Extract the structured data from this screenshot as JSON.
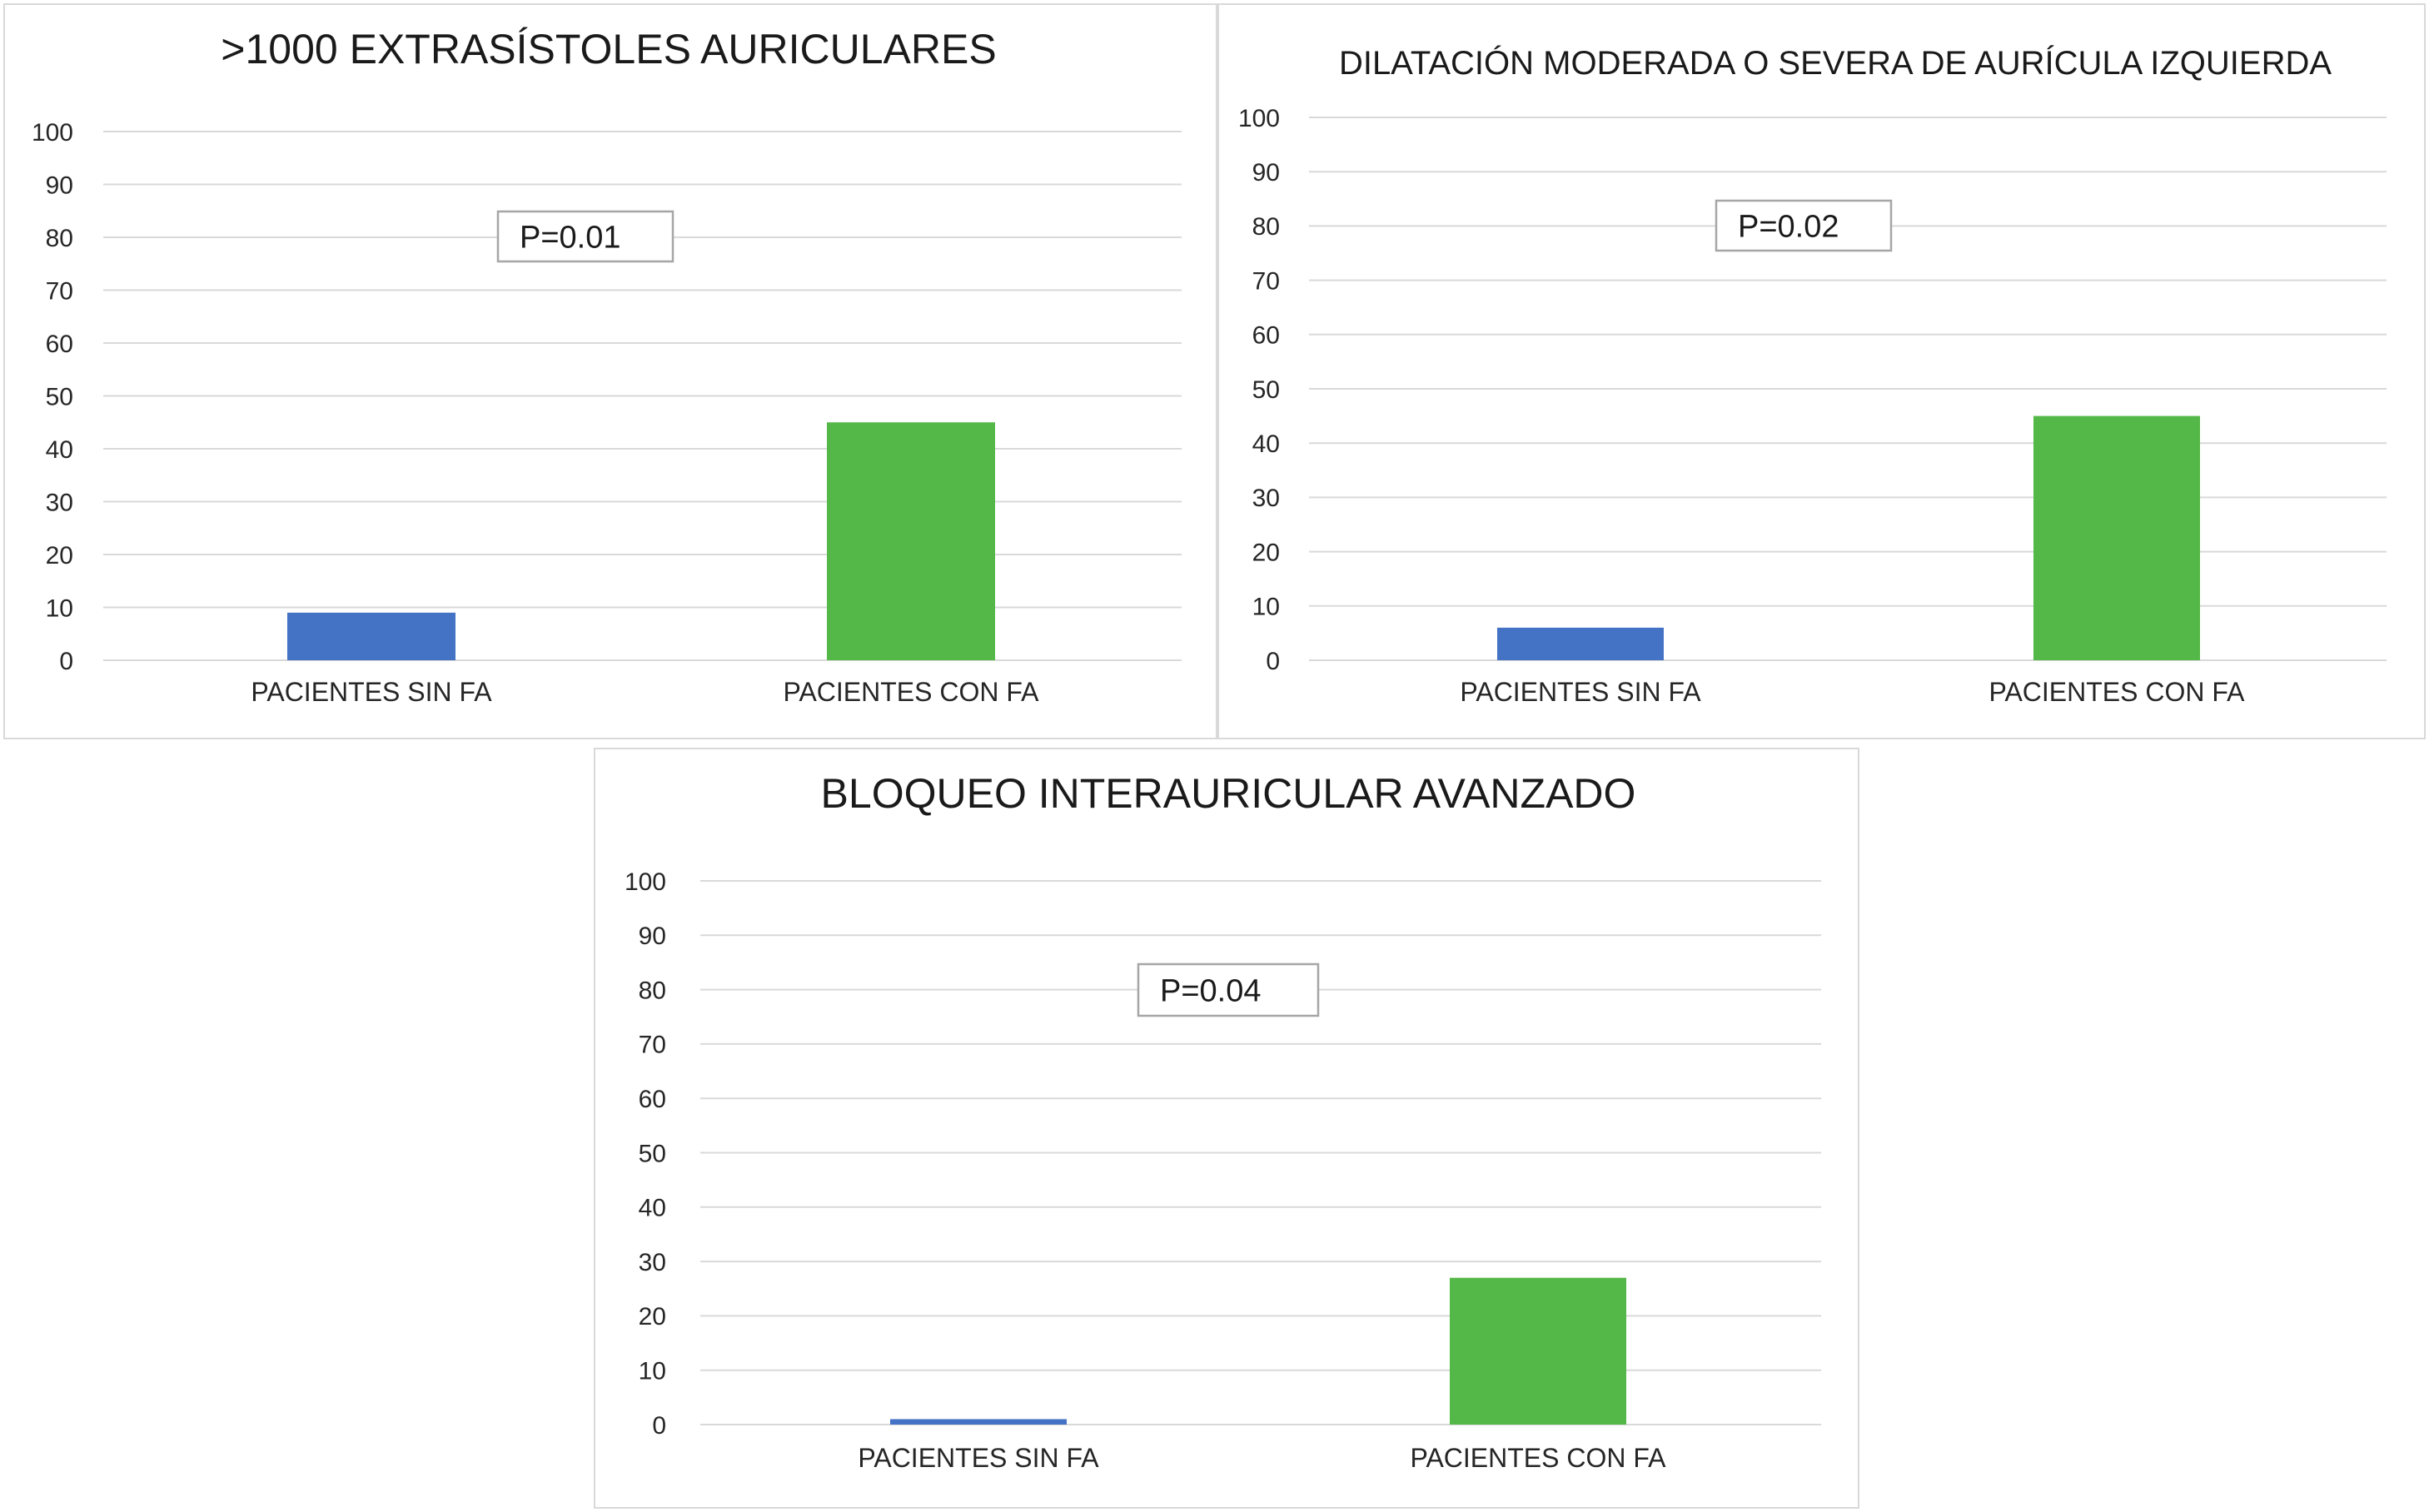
{
  "chart_data": [
    {
      "type": "bar",
      "title": ">1000 EXTRASÍSTOLES AURICULARES",
      "annotation": "P=0.01",
      "categories": [
        "PACIENTES SIN FA",
        "PACIENTES CON FA"
      ],
      "values": [
        9,
        45
      ],
      "colors": [
        "#4472c4",
        "#54b848"
      ],
      "ylim": [
        0,
        100
      ],
      "yticks": [
        0,
        10,
        20,
        30,
        40,
        50,
        60,
        70,
        80,
        90,
        100
      ],
      "grid": true,
      "legend": "none"
    },
    {
      "type": "bar",
      "title": "DILATACIÓN MODERADA O SEVERA DE AURÍCULA IZQUIERDA",
      "annotation": "P=0.02",
      "categories": [
        "PACIENTES SIN FA",
        "PACIENTES CON FA"
      ],
      "values": [
        6,
        45
      ],
      "colors": [
        "#4472c4",
        "#54b848"
      ],
      "ylim": [
        0,
        100
      ],
      "yticks": [
        0,
        10,
        20,
        30,
        40,
        50,
        60,
        70,
        80,
        90,
        100
      ],
      "grid": true,
      "legend": "none"
    },
    {
      "type": "bar",
      "title": "BLOQUEO INTERAURICULAR AVANZADO",
      "annotation": "P=0.04",
      "categories": [
        "PACIENTES SIN FA",
        "PACIENTES CON FA"
      ],
      "values": [
        1,
        27
      ],
      "colors": [
        "#4472c4",
        "#54b848"
      ],
      "ylim": [
        0,
        100
      ],
      "yticks": [
        0,
        10,
        20,
        30,
        40,
        50,
        60,
        70,
        80,
        90,
        100
      ],
      "grid": true,
      "legend": "none"
    }
  ]
}
